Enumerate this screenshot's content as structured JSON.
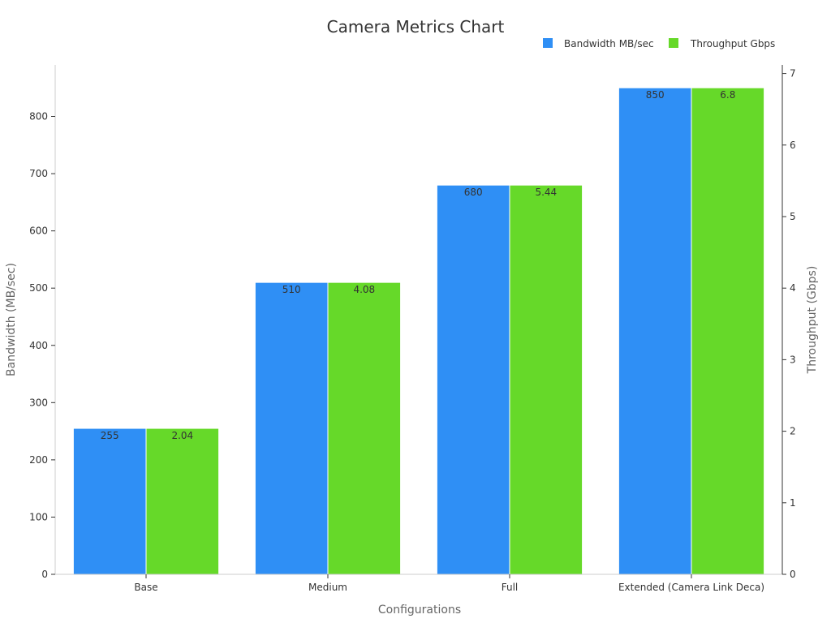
{
  "chart_data": {
    "type": "bar",
    "title": "Camera Metrics Chart",
    "xlabel": "Configurations",
    "ylabel": "Bandwidth (MB/sec)",
    "y2label": "Throughput (Gbps)",
    "categories": [
      "Base",
      "Medium",
      "Full",
      "Extended (Camera Link Deca)"
    ],
    "series": [
      {
        "name": "Bandwidth MB/sec",
        "axis": "left",
        "color": "#2f8ff5",
        "values": [
          255,
          510,
          680,
          850
        ],
        "labels": [
          "255",
          "510",
          "680",
          "850"
        ]
      },
      {
        "name": "Throughput Gbps",
        "axis": "right",
        "color": "#66d929",
        "values": [
          2.04,
          4.08,
          5.44,
          6.8
        ],
        "labels": [
          "2.04",
          "4.08",
          "5.44",
          "6.8"
        ]
      }
    ],
    "ylim": [
      0,
      890
    ],
    "y2lim": [
      0,
      7.12
    ],
    "yticks": [
      0,
      100,
      200,
      300,
      400,
      500,
      600,
      700,
      800
    ],
    "y2ticks": [
      0,
      1,
      2,
      3,
      4,
      5,
      6,
      7
    ],
    "legend": "top-right",
    "grid": false
  }
}
